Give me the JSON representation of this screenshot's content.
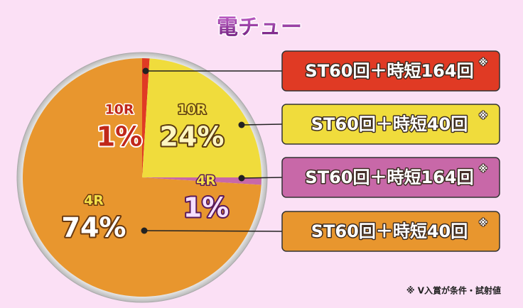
{
  "chart_data": {
    "type": "pie",
    "title": "電チュー",
    "categories": [
      "10R",
      "10R",
      "4R",
      "4R"
    ],
    "values": [
      1,
      24,
      1,
      74
    ],
    "value_labels": [
      "1%",
      "24%",
      "1%",
      "74%"
    ],
    "colors": [
      "#e03a24",
      "#f0dc3c",
      "#c868a8",
      "#e8962e"
    ],
    "descriptions": [
      "ST60回＋時短164回",
      "ST60回＋時短40回",
      "ST60回＋時短164回",
      "ST60回＋時短40回"
    ],
    "note_mark": "※",
    "footnote": "※ V入賞が条件・試射値"
  }
}
